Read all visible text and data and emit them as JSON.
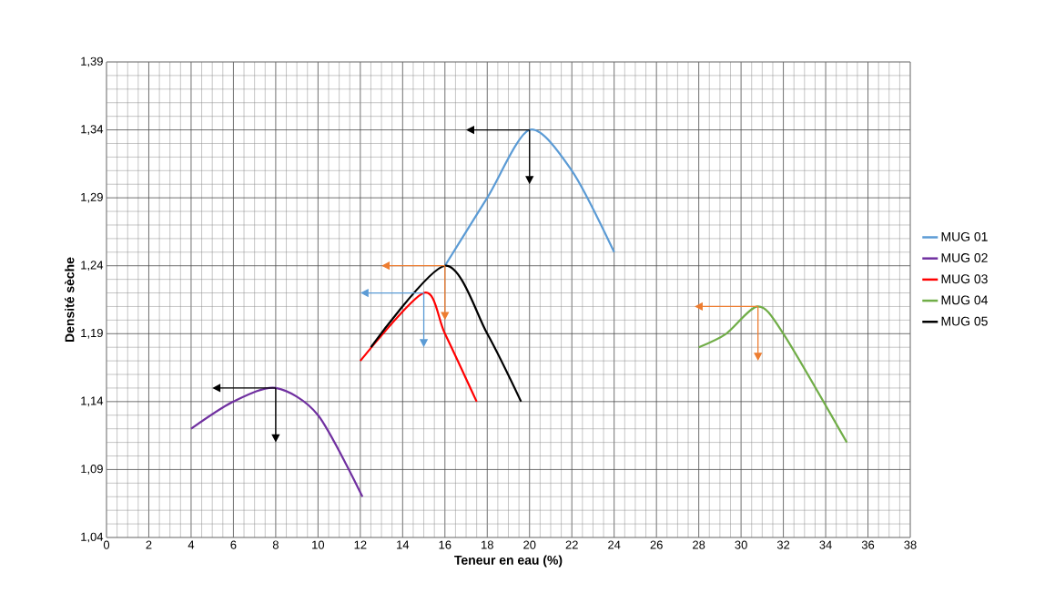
{
  "chart_data": {
    "type": "line",
    "xlabel": "Teneur en eau (%)",
    "ylabel": "Densité sèche",
    "series": [
      {
        "name": "MUG 01",
        "color": "#5b9bd5",
        "x": [
          16,
          18,
          20,
          22,
          24
        ],
        "values": [
          1.24,
          1.29,
          1.34,
          1.31,
          1.25
        ]
      },
      {
        "name": "MUG 02",
        "color": "#7030a0",
        "x": [
          4,
          6,
          8,
          10,
          12.1
        ],
        "values": [
          1.12,
          1.14,
          1.15,
          1.13,
          1.07
        ]
      },
      {
        "name": "MUG 03",
        "color": "#ff0000",
        "x": [
          12,
          15,
          16,
          17.5
        ],
        "values": [
          1.17,
          1.22,
          1.19,
          1.14
        ]
      },
      {
        "name": "MUG 04",
        "color": "#70ad47",
        "x": [
          28,
          29.3,
          30.8,
          32,
          35
        ],
        "values": [
          1.18,
          1.19,
          1.21,
          1.19,
          1.11
        ]
      },
      {
        "name": "MUG 05",
        "color": "#000000",
        "x": [
          12.5,
          16,
          18,
          19.6
        ],
        "values": [
          1.18,
          1.24,
          1.19,
          1.14
        ]
      }
    ],
    "xlim": [
      0,
      38
    ],
    "ylim": [
      1.04,
      1.39
    ],
    "xticks": [
      0,
      2,
      4,
      6,
      8,
      10,
      12,
      14,
      16,
      18,
      20,
      22,
      24,
      26,
      28,
      30,
      32,
      34,
      36,
      38
    ],
    "yticks": [
      {
        "value": 1.04,
        "label": "1,04"
      },
      {
        "value": 1.09,
        "label": "1,09"
      },
      {
        "value": 1.14,
        "label": "1,14"
      },
      {
        "value": 1.19,
        "label": "1,19"
      },
      {
        "value": 1.24,
        "label": "1,24"
      },
      {
        "value": 1.29,
        "label": "1,29"
      },
      {
        "value": 1.34,
        "label": "1,34"
      },
      {
        "value": 1.39,
        "label": "1,39"
      }
    ],
    "grid": true,
    "legend": "right",
    "marker": "none",
    "line_style": "solid"
  }
}
